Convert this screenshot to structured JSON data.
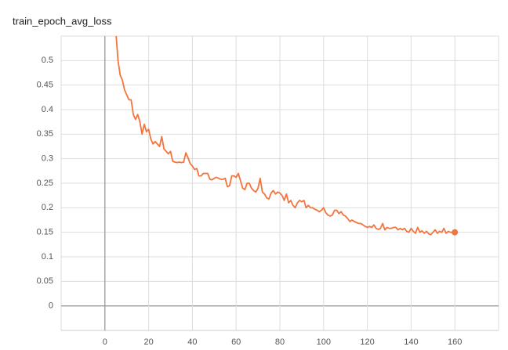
{
  "chart_data": {
    "type": "line",
    "title": "train_epoch_avg_loss",
    "x": [
      5,
      6,
      7,
      8,
      9,
      10,
      11,
      12,
      13,
      14,
      15,
      16,
      17,
      18,
      19,
      20,
      21,
      22,
      23,
      24,
      25,
      26,
      27,
      28,
      29,
      30,
      31,
      32,
      33,
      34,
      35,
      36,
      37,
      38,
      39,
      40,
      41,
      42,
      43,
      44,
      45,
      46,
      47,
      48,
      49,
      50,
      51,
      52,
      53,
      54,
      55,
      56,
      57,
      58,
      59,
      60,
      61,
      62,
      63,
      64,
      65,
      66,
      67,
      68,
      69,
      70,
      71,
      72,
      73,
      74,
      75,
      76,
      77,
      78,
      79,
      80,
      81,
      82,
      83,
      84,
      85,
      86,
      87,
      88,
      89,
      90,
      91,
      92,
      93,
      94,
      95,
      96,
      97,
      98,
      99,
      100,
      101,
      102,
      103,
      104,
      105,
      106,
      107,
      108,
      109,
      110,
      111,
      112,
      113,
      114,
      115,
      116,
      117,
      118,
      119,
      120,
      121,
      122,
      123,
      124,
      125,
      126,
      127,
      128,
      129,
      130,
      131,
      132,
      133,
      134,
      135,
      136,
      137,
      138,
      139,
      140,
      141,
      142,
      143,
      144,
      145,
      146,
      147,
      148,
      149,
      150,
      151,
      152,
      153,
      154,
      155,
      156,
      157,
      158,
      159,
      160
    ],
    "values": [
      0.56,
      0.5,
      0.47,
      0.46,
      0.44,
      0.43,
      0.42,
      0.42,
      0.39,
      0.38,
      0.39,
      0.375,
      0.35,
      0.37,
      0.355,
      0.36,
      0.34,
      0.33,
      0.335,
      0.33,
      0.325,
      0.345,
      0.32,
      0.315,
      0.31,
      0.315,
      0.295,
      0.293,
      0.292,
      0.293,
      0.292,
      0.293,
      0.312,
      0.302,
      0.29,
      0.285,
      0.278,
      0.28,
      0.265,
      0.265,
      0.27,
      0.27,
      0.27,
      0.258,
      0.257,
      0.26,
      0.262,
      0.26,
      0.258,
      0.258,
      0.26,
      0.243,
      0.245,
      0.265,
      0.265,
      0.262,
      0.27,
      0.255,
      0.24,
      0.237,
      0.25,
      0.25,
      0.24,
      0.235,
      0.232,
      0.24,
      0.26,
      0.232,
      0.228,
      0.22,
      0.218,
      0.23,
      0.235,
      0.228,
      0.232,
      0.23,
      0.225,
      0.215,
      0.228,
      0.21,
      0.215,
      0.205,
      0.2,
      0.21,
      0.215,
      0.212,
      0.215,
      0.2,
      0.205,
      0.2,
      0.2,
      0.197,
      0.195,
      0.192,
      0.195,
      0.2,
      0.19,
      0.185,
      0.183,
      0.185,
      0.195,
      0.195,
      0.188,
      0.192,
      0.185,
      0.183,
      0.178,
      0.172,
      0.175,
      0.172,
      0.17,
      0.168,
      0.168,
      0.165,
      0.162,
      0.16,
      0.162,
      0.16,
      0.165,
      0.158,
      0.156,
      0.158,
      0.168,
      0.155,
      0.16,
      0.158,
      0.158,
      0.16,
      0.16,
      0.155,
      0.158,
      0.155,
      0.158,
      0.152,
      0.15,
      0.158,
      0.152,
      0.148,
      0.16,
      0.15,
      0.153,
      0.148,
      0.152,
      0.147,
      0.145,
      0.15,
      0.155,
      0.148,
      0.152,
      0.15,
      0.158,
      0.148,
      0.152,
      0.15,
      0.15,
      0.15
    ],
    "color": "#f4743d",
    "xlim": [
      -20,
      180
    ],
    "xticks": [
      0,
      20,
      40,
      60,
      80,
      100,
      120,
      140,
      160
    ],
    "ylim": [
      -0.05,
      0.55
    ],
    "yticks": [
      0,
      0.05,
      0.1,
      0.15,
      0.2,
      0.25,
      0.3,
      0.35,
      0.4,
      0.45,
      0.5
    ],
    "grid": true
  }
}
